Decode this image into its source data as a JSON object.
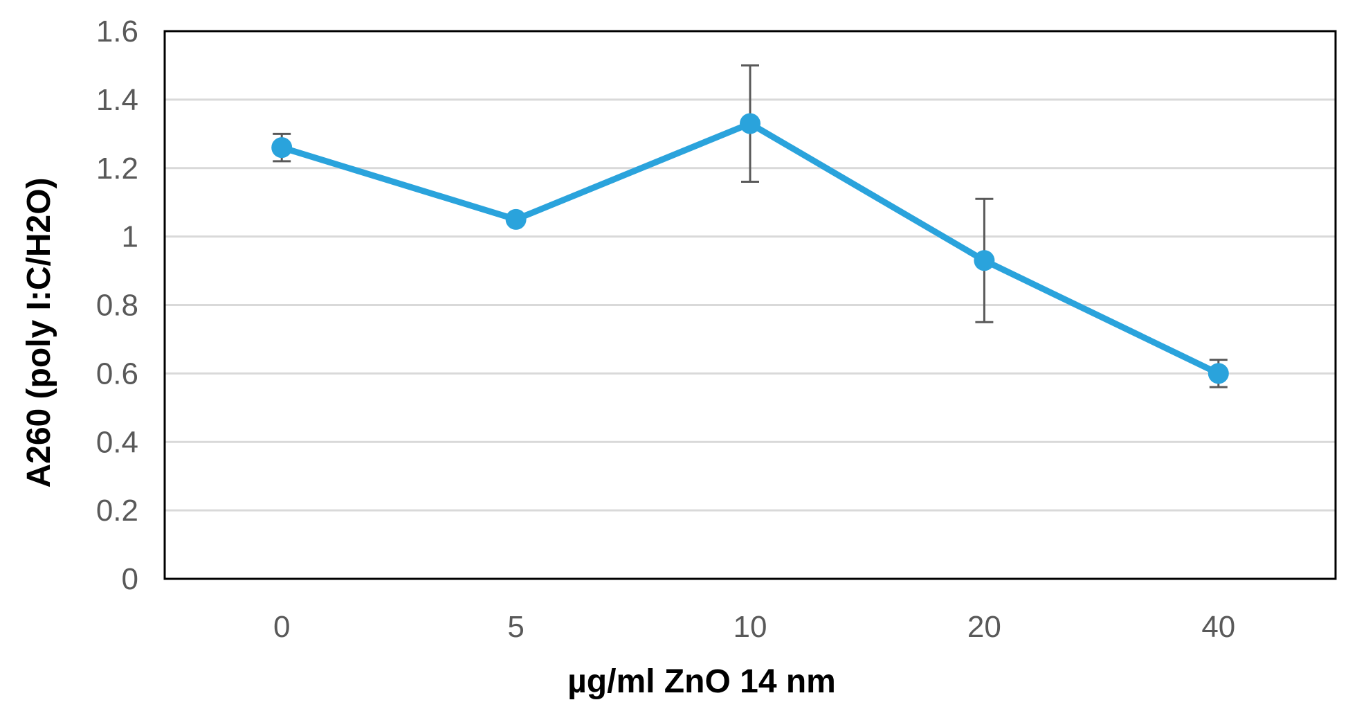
{
  "chart_data": {
    "type": "line",
    "title": "",
    "xlabel": "µg/ml ZnO 14 nm",
    "ylabel": "A260 (poly I:C/H2O)",
    "categories": [
      "0",
      "5",
      "10",
      "20",
      "40"
    ],
    "series": [
      {
        "name": "A260",
        "values": [
          1.26,
          1.05,
          1.33,
          0.93,
          0.6
        ],
        "errors": [
          0.04,
          0.0,
          0.17,
          0.18,
          0.04
        ]
      }
    ],
    "ylim": [
      0,
      1.6
    ],
    "yticks": [
      "0",
      "0.2",
      "0.4",
      "0.6",
      "0.8",
      "1",
      "1.2",
      "1.4",
      "1.6"
    ],
    "ytick_values": [
      0,
      0.2,
      0.4,
      0.6,
      0.8,
      1.0,
      1.2,
      1.4,
      1.6
    ],
    "grid": true,
    "legend": "none",
    "colors": {
      "line": "#2aa3dc",
      "grid": "#d9d9d9",
      "frame": "#000000",
      "error_bar": "#595959",
      "tick_text": "#595959"
    }
  }
}
